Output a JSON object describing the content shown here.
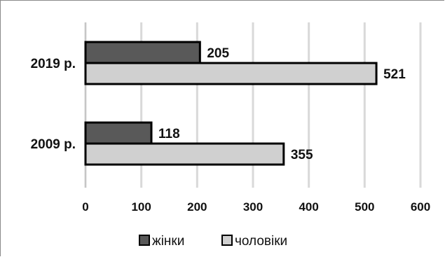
{
  "chart_data": {
    "type": "bar",
    "orientation": "horizontal",
    "categories": [
      "2019 р.",
      "2009 р."
    ],
    "series": [
      {
        "name": "жінки",
        "values": [
          205,
          118
        ],
        "color": "#595959"
      },
      {
        "name": "чоловіки",
        "values": [
          521,
          355
        ],
        "color": "#d0d0d0"
      }
    ],
    "xlim": [
      0,
      600
    ],
    "x_ticks": [
      0,
      100,
      200,
      300,
      400,
      500,
      600
    ],
    "grid": true,
    "legend_position": "bottom"
  }
}
